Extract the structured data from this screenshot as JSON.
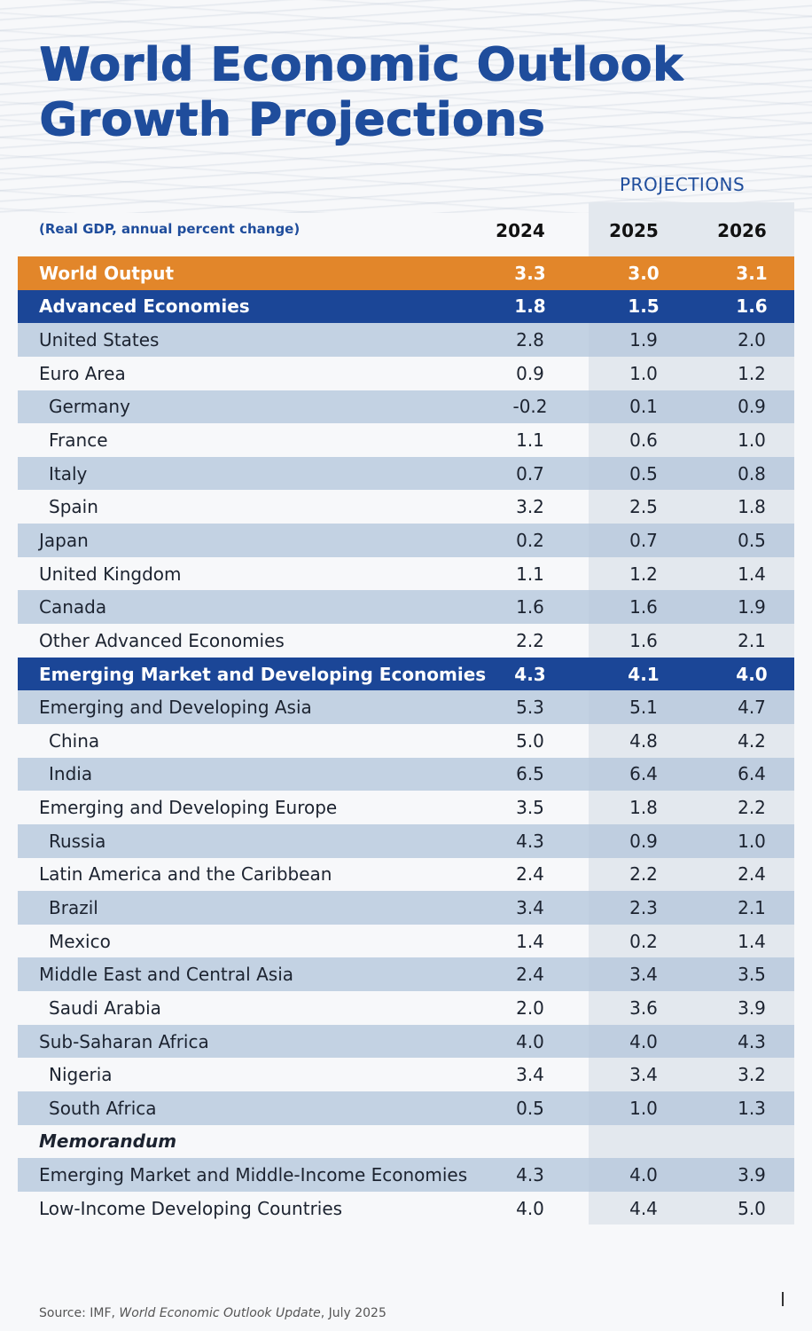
{
  "chart_data": {
    "type": "table",
    "title": "World Economic Outlook Growth Projections",
    "title_lines": [
      "World Economic Outlook",
      "Growth Projections"
    ],
    "subtitle": "(Real GDP, annual percent change)",
    "projections_label": "PROJECTIONS",
    "columns": [
      "2024",
      "2025",
      "2026"
    ],
    "rows": [
      {
        "label": "World Output",
        "values": [
          "3.3",
          "3.0",
          "3.1"
        ],
        "style": "orange"
      },
      {
        "label": "Advanced Economies",
        "values": [
          "1.8",
          "1.5",
          "1.6"
        ],
        "style": "blue"
      },
      {
        "label": "United States",
        "values": [
          "2.8",
          "1.9",
          "2.0"
        ],
        "style": "shade"
      },
      {
        "label": "Euro Area",
        "values": [
          "0.9",
          "1.0",
          "1.2"
        ],
        "style": "plain"
      },
      {
        "label": "Germany",
        "values": [
          "-0.2",
          "0.1",
          "0.9"
        ],
        "style": "shade",
        "indent": true
      },
      {
        "label": "France",
        "values": [
          "1.1",
          "0.6",
          "1.0"
        ],
        "style": "plain",
        "indent": true
      },
      {
        "label": "Italy",
        "values": [
          "0.7",
          "0.5",
          "0.8"
        ],
        "style": "shade",
        "indent": true
      },
      {
        "label": "Spain",
        "values": [
          "3.2",
          "2.5",
          "1.8"
        ],
        "style": "plain",
        "indent": true
      },
      {
        "label": "Japan",
        "values": [
          "0.2",
          "0.7",
          "0.5"
        ],
        "style": "shade"
      },
      {
        "label": "United Kingdom",
        "values": [
          "1.1",
          "1.2",
          "1.4"
        ],
        "style": "plain"
      },
      {
        "label": "Canada",
        "values": [
          "1.6",
          "1.6",
          "1.9"
        ],
        "style": "shade"
      },
      {
        "label": "Other Advanced Economies",
        "values": [
          "2.2",
          "1.6",
          "2.1"
        ],
        "style": "plain"
      },
      {
        "label": "Emerging Market and Developing Economies",
        "values": [
          "4.3",
          "4.1",
          "4.0"
        ],
        "style": "blue"
      },
      {
        "label": "Emerging and Developing Asia",
        "values": [
          "5.3",
          "5.1",
          "4.7"
        ],
        "style": "shade"
      },
      {
        "label": "China",
        "values": [
          "5.0",
          "4.8",
          "4.2"
        ],
        "style": "plain",
        "indent": true
      },
      {
        "label": "India",
        "values": [
          "6.5",
          "6.4",
          "6.4"
        ],
        "style": "shade",
        "indent": true
      },
      {
        "label": "Emerging and Developing Europe",
        "values": [
          "3.5",
          "1.8",
          "2.2"
        ],
        "style": "plain"
      },
      {
        "label": "Russia",
        "values": [
          "4.3",
          "0.9",
          "1.0"
        ],
        "style": "shade",
        "indent": true
      },
      {
        "label": "Latin America and the Caribbean",
        "values": [
          "2.4",
          "2.2",
          "2.4"
        ],
        "style": "plain"
      },
      {
        "label": "Brazil",
        "values": [
          "3.4",
          "2.3",
          "2.1"
        ],
        "style": "shade",
        "indent": true
      },
      {
        "label": "Mexico",
        "values": [
          "1.4",
          "0.2",
          "1.4"
        ],
        "style": "plain",
        "indent": true
      },
      {
        "label": "Middle East and Central Asia",
        "values": [
          "2.4",
          "3.4",
          "3.5"
        ],
        "style": "shade"
      },
      {
        "label": "Saudi Arabia",
        "values": [
          "2.0",
          "3.6",
          "3.9"
        ],
        "style": "plain",
        "indent": true
      },
      {
        "label": "Sub-Saharan Africa",
        "values": [
          "4.0",
          "4.0",
          "4.3"
        ],
        "style": "shade"
      },
      {
        "label": "Nigeria",
        "values": [
          "3.4",
          "3.4",
          "3.2"
        ],
        "style": "plain",
        "indent": true
      },
      {
        "label": "South Africa",
        "values": [
          "0.5",
          "1.0",
          "1.3"
        ],
        "style": "shade",
        "indent": true
      },
      {
        "label": "Memorandum",
        "values": [
          "",
          "",
          ""
        ],
        "style": "memo"
      },
      {
        "label": "Emerging Market and Middle-Income Economies",
        "values": [
          "4.3",
          "4.0",
          "3.9"
        ],
        "style": "shade"
      },
      {
        "label": "Low-Income Developing Countries",
        "values": [
          "4.0",
          "4.4",
          "5.0"
        ],
        "style": "plain"
      }
    ]
  },
  "source": {
    "prefix": "Source: IMF, ",
    "publication": "World Economic Outlook Update",
    "suffix": ", July 2025"
  },
  "colors": {
    "title": "#1f4d9c",
    "orange_row": "#e2862a",
    "blue_row": "#1b4697",
    "shade_row": "#b5c7dd",
    "projection_column": "#e3e8ee"
  }
}
